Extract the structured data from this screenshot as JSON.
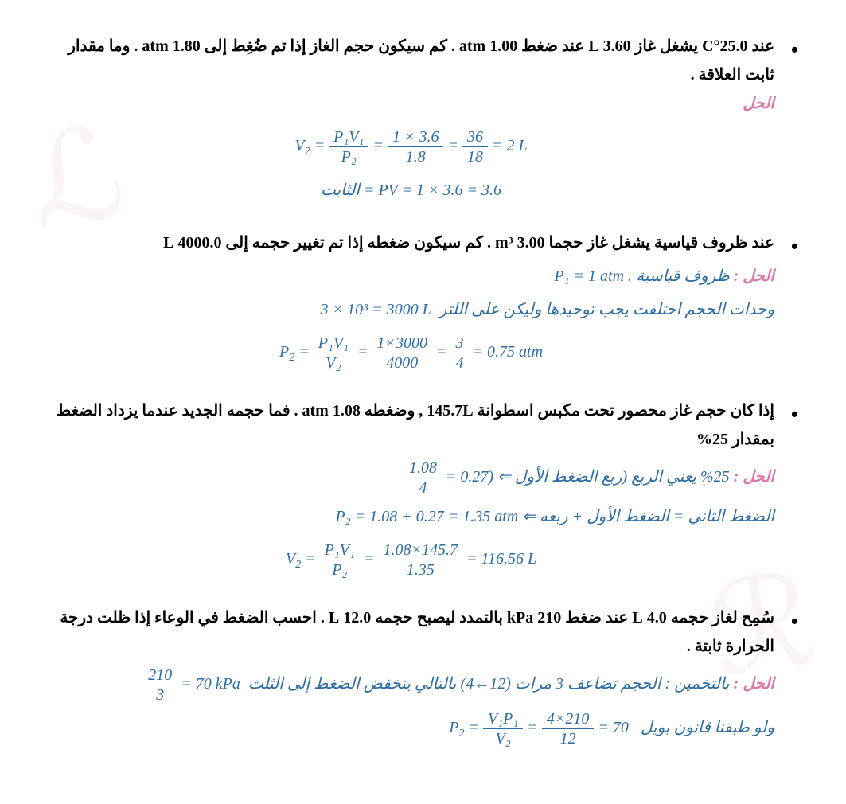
{
  "problems": [
    {
      "question": "عند 25.0°C يشغل غاز 3.60 L عند ضغط 1.00 atm . كم سيكون حجم الغاز إذا تم ضُغِط إلى 1.80 atm . وما مقدار ثابت العلاقة .",
      "solution_label": "الحل",
      "eq1_lhs": "V",
      "eq1_sub": "2",
      "eq1_f1_num": "P₁V₁",
      "eq1_f1_den": "P₂",
      "eq1_f2_num": "1 × 3.6",
      "eq1_f2_den": "1.8",
      "eq1_f3_num": "36",
      "eq1_f3_den": "18",
      "eq1_result": "2 L",
      "eq2_label": "الثابت",
      "eq2_body": "= PV = 1 × 3.6 = 3.6"
    },
    {
      "question": "عند ظروف قياسية يشغل غاز حجما 3.00 m³ . كم سيكون ضغطه إذا تم تغيير حجمه إلى 4000.0 L",
      "solution_label": "الحل :",
      "note1_ar": "ظروف قياسية",
      "note1_eq": "P₁ = 1 atm .",
      "note2_ar": "وحدات الحجم اختلفت يجب توحيدها وليكن على اللتر",
      "note2_eq": "3 × 10³ = 3000 L",
      "eq_lhs": "P",
      "eq_sub": "2",
      "eq_f1_num": "P₁V₁",
      "eq_f1_den": "V₂",
      "eq_f2_num": "1×3000",
      "eq_f2_den": "4000",
      "eq_f3_num": "3",
      "eq_f3_den": "4",
      "eq_result": "0.75 atm"
    },
    {
      "question": "إذا كان حجم غاز محصور تحت مكبس اسطوانة 145.7L , وضغطه 1.08 atm . فما حجمه الجديد عندما يزداد الضغط بمقدار 25%",
      "solution_label": "الحل :",
      "note1_ar": "25% يعني الربع (ربع الضغط الأول ⇐",
      "note1_frac_num": "1.08",
      "note1_frac_den": "4",
      "note1_tail": "= 0.27)",
      "note2_ar": "الضغط الثاني = الضغط الأول + ربعه ⇐",
      "note2_eq": "P₂ = 1.08 + 0.27 = 1.35 atm",
      "eq_lhs": "V",
      "eq_sub": "2",
      "eq_f1_num": "P₁V₁",
      "eq_f1_den": "P₂",
      "eq_f2_num": "1.08×145.7",
      "eq_f2_den": "1.35",
      "eq_result": "116.56 L"
    },
    {
      "question": "سُمِح لغاز حجمه 4.0 L عند ضغط 210 kPa بالتمدد ليصبح حجمه 12.0 L . احسب الضغط في الوعاء إذا ظلت درجة الحرارة ثابتة .",
      "solution_label": "الحل :",
      "note1_ar": "بالتخمين : الحجم تضاعف 3 مرات (12←4) بالتالي ينخفض الضغط إلى الثلث",
      "note1_frac_num": "210",
      "note1_frac_den": "3",
      "note1_tail": "= 70 kPa",
      "note2_ar": "ولو طبقنا قانون بويل",
      "eq_lhs": "P",
      "eq_sub": "2",
      "eq_f1_num": "V₁P₁",
      "eq_f1_den": "V₂",
      "eq_f2_num": "4×210",
      "eq_f2_den": "12",
      "eq_result": "70"
    }
  ]
}
